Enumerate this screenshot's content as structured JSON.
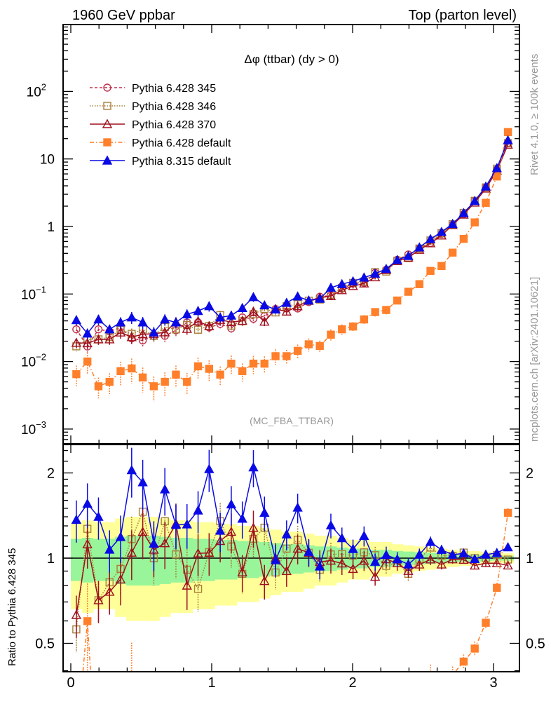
{
  "header": {
    "left": "1960 GeV ppbar",
    "right": "Top (parton level)"
  },
  "side_labels": {
    "rivet": "Rivet 4.1.0, ≥ 100k events",
    "mcplots": "mcplots.cern.ch [arXiv:2401.10621]"
  },
  "analysis_tag": "(MC_FBA_TTBAR)",
  "chart_data": {
    "type": "line",
    "title": "Δφ (ttbar) (dy > 0)",
    "xlabel": "",
    "ylabel_main": "",
    "ylabel_ratio": "Ratio to Pythia 6.428 345",
    "xlim": [
      -0.05,
      3.2
    ],
    "ylim_main": [
      0.0005,
      1000
    ],
    "ylim_ratio": [
      0.395,
      2.5
    ],
    "yscale_main": "log",
    "yscale_ratio": "log",
    "xticks": [
      "0",
      "1",
      "2",
      "3"
    ],
    "yticks_main": [
      {
        "v": 0.001,
        "base": "10",
        "exp": "−3"
      },
      {
        "v": 0.01,
        "base": "10",
        "exp": "−2"
      },
      {
        "v": 0.1,
        "base": "10",
        "exp": "−1"
      },
      {
        "v": 1,
        "base": "1",
        "exp": ""
      },
      {
        "v": 10,
        "base": "10",
        "exp": ""
      },
      {
        "v": 100,
        "base": "10",
        "exp": "2"
      }
    ],
    "yticks_ratio": [
      "0.5",
      "1",
      "2"
    ],
    "yticks_ratio_values": [
      0.5,
      1,
      2
    ],
    "legend_position": "top-left",
    "nbins": 40,
    "x_max": 3.14159,
    "reference": "Pythia 6.428 345",
    "ref_rel_err": [
      0.17,
      0.18,
      0.17,
      0.17,
      0.19,
      0.2,
      0.2,
      0.2,
      0.19,
      0.18,
      0.18,
      0.17,
      0.17,
      0.16,
      0.16,
      0.15,
      0.15,
      0.14,
      0.13,
      0.12,
      0.12,
      0.11,
      0.1,
      0.1,
      0.09,
      0.08,
      0.08,
      0.07,
      0.07,
      0.06,
      0.055,
      0.05,
      0.045,
      0.04,
      0.035,
      0.03,
      0.03,
      0.025,
      0.02,
      0.02
    ],
    "series": [
      {
        "name": "Pythia 6.428 345",
        "color": "#c0304a",
        "dash": "4,3",
        "marker": "circle-open",
        "rel_err": 1,
        "values": [
          0.03,
          0.0167,
          0.03,
          0.028,
          0.032,
          0.022,
          0.0205,
          0.024,
          0.024,
          0.029,
          0.038,
          0.038,
          0.032,
          0.036,
          0.031,
          0.045,
          0.043,
          0.047,
          0.06,
          0.061,
          0.061,
          0.076,
          0.091,
          0.095,
          0.119,
          0.143,
          0.146,
          0.206,
          0.229,
          0.322,
          0.385,
          0.476,
          0.57,
          0.776,
          1.06,
          1.52,
          2.4,
          3.79,
          7.0,
          17.3
        ]
      },
      {
        "name": "Pythia 6.428 346",
        "color": "#a8803a",
        "dash": "1.5,2",
        "marker": "square-open",
        "rel_err": 1,
        "values": [
          0.0168,
          0.0212,
          0.0213,
          0.023,
          0.0293,
          0.0257,
          0.0299,
          0.024,
          0.0324,
          0.0299,
          0.0346,
          0.0296,
          0.0336,
          0.0486,
          0.0341,
          0.0396,
          0.0503,
          0.0602,
          0.0534,
          0.0659,
          0.0708,
          0.0794,
          0.0828,
          0.0979,
          0.123,
          0.146,
          0.153,
          0.211,
          0.215,
          0.309,
          0.339,
          0.471,
          0.621,
          0.792,
          1.08,
          1.59,
          2.4,
          3.79,
          7.18,
          17.1
        ]
      },
      {
        "name": "Pythia 6.428 370",
        "color": "#a0101e",
        "dash": "",
        "marker": "triangle-open",
        "rel_err": 1,
        "values": [
          0.0189,
          0.0187,
          0.0213,
          0.0213,
          0.0269,
          0.023,
          0.0254,
          0.0257,
          0.0271,
          0.0383,
          0.0304,
          0.0395,
          0.0334,
          0.0414,
          0.0384,
          0.0401,
          0.055,
          0.039,
          0.06,
          0.0549,
          0.0659,
          0.0794,
          0.0883,
          0.0931,
          0.114,
          0.131,
          0.143,
          0.177,
          0.227,
          0.309,
          0.347,
          0.452,
          0.564,
          0.737,
          1.05,
          1.5,
          2.26,
          3.64,
          6.72,
          16.3
        ]
      },
      {
        "name": "Pythia 6.428 default",
        "color": "#ff7f2a",
        "dash": "6,3,1.5,3",
        "marker": "square-filled",
        "rel_err": 2,
        "values": [
          0.0065,
          0.01,
          0.0043,
          0.005,
          0.0072,
          0.0079,
          0.0058,
          0.0043,
          0.005,
          0.0064,
          0.005,
          0.0085,
          0.0078,
          0.0064,
          0.0093,
          0.0072,
          0.0093,
          0.0093,
          0.012,
          0.012,
          0.0144,
          0.018,
          0.017,
          0.025,
          0.03,
          0.033,
          0.042,
          0.054,
          0.058,
          0.08,
          0.108,
          0.14,
          0.22,
          0.26,
          0.41,
          0.655,
          1.15,
          2.24,
          5.5,
          25
        ]
      },
      {
        "name": "Pythia 8.315 default",
        "color": "#0a0ae6",
        "dash": "",
        "marker": "triangle-filled",
        "rel_err": 1,
        "values": [
          0.041,
          0.026,
          0.042,
          0.03,
          0.038,
          0.045,
          0.038,
          0.027,
          0.042,
          0.038,
          0.05,
          0.056,
          0.066,
          0.045,
          0.048,
          0.062,
          0.09,
          0.068,
          0.059,
          0.074,
          0.092,
          0.08,
          0.085,
          0.124,
          0.14,
          0.154,
          0.175,
          0.2,
          0.235,
          0.319,
          0.366,
          0.49,
          0.65,
          0.83,
          1.09,
          1.58,
          2.38,
          3.9,
          7.3,
          18.9
        ]
      }
    ],
    "band_colors": {
      "inner": "#99f599",
      "outer": "#ffff99"
    }
  }
}
